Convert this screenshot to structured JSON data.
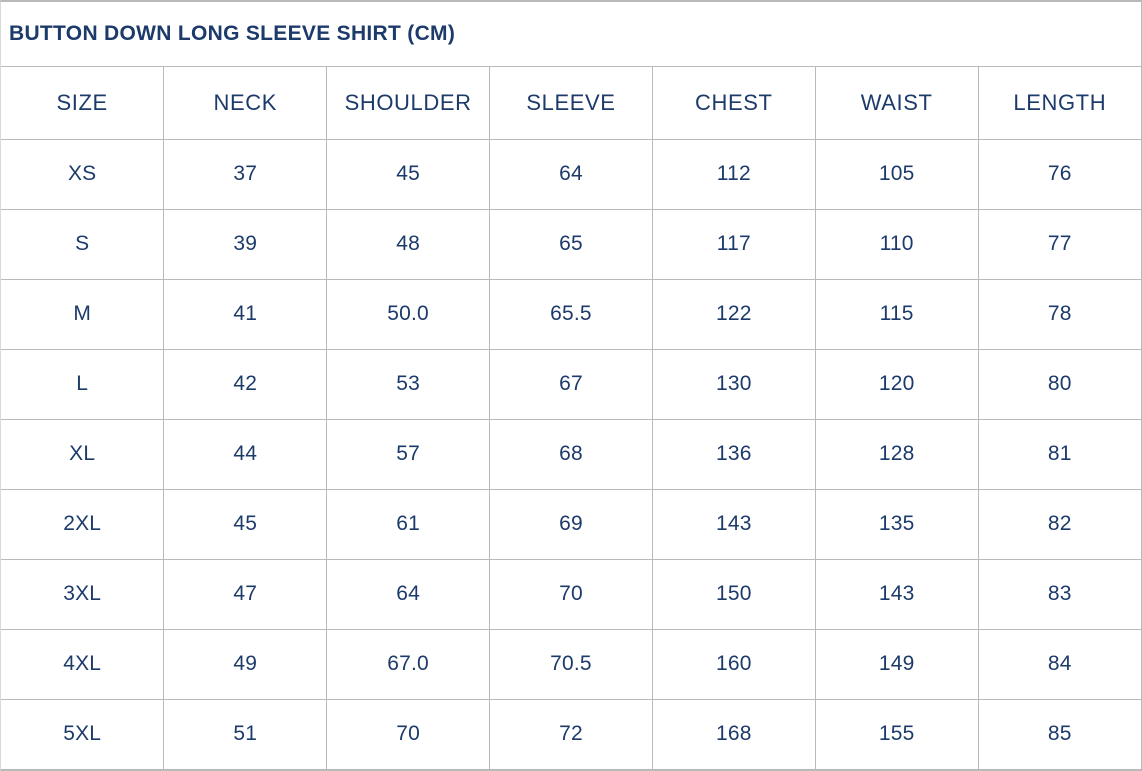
{
  "colors": {
    "text": "#1c3a6a",
    "border": "#b9b9b9",
    "background": "#ffffff"
  },
  "chart_data": {
    "type": "table",
    "title": "BUTTON DOWN LONG SLEEVE SHIRT (CM)",
    "unit": "cm",
    "columns": [
      "SIZE",
      "NECK",
      "SHOULDER",
      "SLEEVE",
      "CHEST",
      "WAIST",
      "LENGTH"
    ],
    "rows": [
      [
        "XS",
        "37",
        "45",
        "64",
        "112",
        "105",
        "76"
      ],
      [
        "S",
        "39",
        "48",
        "65",
        "117",
        "110",
        "77"
      ],
      [
        "M",
        "41",
        "50.0",
        "65.5",
        "122",
        "115",
        "78"
      ],
      [
        "L",
        "42",
        "53",
        "67",
        "130",
        "120",
        "80"
      ],
      [
        "XL",
        "44",
        "57",
        "68",
        "136",
        "128",
        "81"
      ],
      [
        "2XL",
        "45",
        "61",
        "69",
        "143",
        "135",
        "82"
      ],
      [
        "3XL",
        "47",
        "64",
        "70",
        "150",
        "143",
        "83"
      ],
      [
        "4XL",
        "49",
        "67.0",
        "70.5",
        "160",
        "149",
        "84"
      ],
      [
        "5XL",
        "51",
        "70",
        "72",
        "168",
        "155",
        "85"
      ]
    ]
  }
}
